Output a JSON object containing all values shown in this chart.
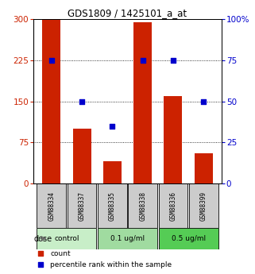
{
  "title": "GDS1809 / 1425101_a_at",
  "samples": [
    "GSM88334",
    "GSM88337",
    "GSM88335",
    "GSM88338",
    "GSM88336",
    "GSM88399"
  ],
  "counts": [
    300,
    100,
    40,
    295,
    160,
    55
  ],
  "percentiles": [
    75,
    50,
    35,
    75,
    75,
    50
  ],
  "groups": [
    {
      "label": "control",
      "indices": [
        0,
        1
      ],
      "color": "#c8eec8"
    },
    {
      "label": "0.1 ug/ml",
      "indices": [
        2,
        3
      ],
      "color": "#a0dba0"
    },
    {
      "label": "0.5 ug/ml",
      "indices": [
        4,
        5
      ],
      "color": "#55cc55"
    }
  ],
  "dose_label": "dose",
  "bar_color": "#cc2200",
  "dot_color": "#0000cc",
  "left_ylim": [
    0,
    300
  ],
  "right_ylim": [
    0,
    100
  ],
  "left_yticks": [
    0,
    75,
    150,
    225,
    300
  ],
  "right_yticks": [
    0,
    25,
    50,
    75,
    100
  ],
  "right_yticklabels": [
    "0",
    "25",
    "50",
    "75",
    "100%"
  ],
  "bg_color": "#ffffff",
  "plot_bg": "#ffffff",
  "sample_box_color": "#cccccc",
  "legend_items": [
    "count",
    "percentile rank within the sample"
  ],
  "grid_yticks": [
    75,
    150,
    225
  ]
}
